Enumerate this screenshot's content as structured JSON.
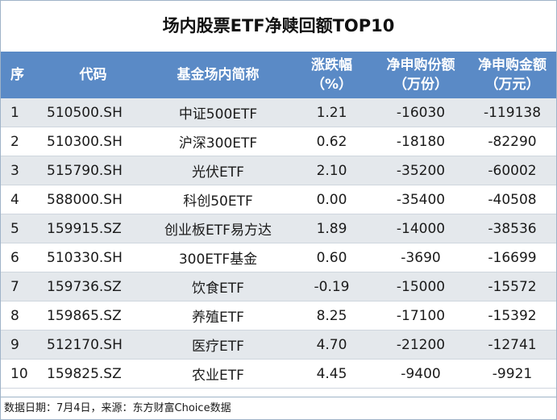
{
  "title": "场内股票ETF净赎回额TOP10",
  "headers": {
    "idx": "序",
    "code": "代码",
    "name": "基金场内简称",
    "change_l1": "涨跌幅",
    "change_l2": "（%）",
    "shares_l1": "净申购份额",
    "shares_l2": "（万份）",
    "amount_l1": "净申购金额",
    "amount_l2": "（万元）"
  },
  "rows": [
    {
      "idx": "1",
      "code": "510500.SH",
      "name": "中证500ETF",
      "change": "1.21",
      "shares": "-16030",
      "amount": "-119138"
    },
    {
      "idx": "2",
      "code": "510300.SH",
      "name": "沪深300ETF",
      "change": "0.62",
      "shares": "-18180",
      "amount": "-82290"
    },
    {
      "idx": "3",
      "code": "515790.SH",
      "name": "光伏ETF",
      "change": "2.10",
      "shares": "-35200",
      "amount": "-60002"
    },
    {
      "idx": "4",
      "code": "588000.SH",
      "name": "科创50ETF",
      "change": "0.00",
      "shares": "-35400",
      "amount": "-40508"
    },
    {
      "idx": "5",
      "code": "159915.SZ",
      "name": "创业板ETF易方达",
      "change": "1.89",
      "shares": "-14000",
      "amount": "-38536"
    },
    {
      "idx": "6",
      "code": "510330.SH",
      "name": "300ETF基金",
      "change": "0.60",
      "shares": "-3690",
      "amount": "-16699"
    },
    {
      "idx": "7",
      "code": "159736.SZ",
      "name": "饮食ETF",
      "change": "-0.19",
      "shares": "-15000",
      "amount": "-15572"
    },
    {
      "idx": "8",
      "code": "159865.SZ",
      "name": "养殖ETF",
      "change": "8.25",
      "shares": "-17100",
      "amount": "-15392"
    },
    {
      "idx": "9",
      "code": "512170.SH",
      "name": "医疗ETF",
      "change": "4.70",
      "shares": "-21200",
      "amount": "-12741"
    },
    {
      "idx": "10",
      "code": "159825.SZ",
      "name": "农业ETF",
      "change": "4.45",
      "shares": "-9400",
      "amount": "-9921"
    }
  ],
  "footer": "数据日期：7月4日，来源：东方财富Choice数据"
}
